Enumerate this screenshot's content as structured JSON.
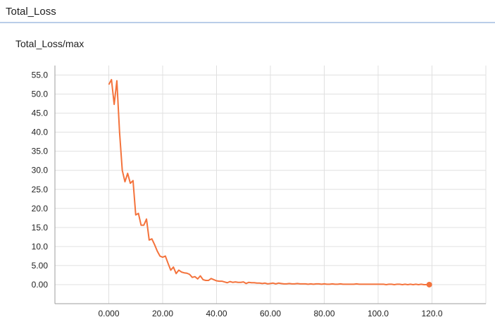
{
  "header": {
    "title": "Total_Loss"
  },
  "card": {
    "title": "Total_Loss/max"
  },
  "chart_data": {
    "type": "line",
    "title": "Total_Loss/max",
    "xlabel": "",
    "ylabel": "",
    "xlim": [
      -20,
      140
    ],
    "ylim": [
      -5,
      57.5
    ],
    "grid": true,
    "x_ticks": [
      0,
      20,
      40,
      60,
      80,
      100,
      120
    ],
    "x_tick_labels": [
      "0.000",
      "20.00",
      "40.00",
      "60.00",
      "80.00",
      "100.0",
      "120.0"
    ],
    "y_ticks": [
      0,
      5,
      10,
      15,
      20,
      25,
      30,
      35,
      40,
      45,
      50,
      55
    ],
    "y_tick_labels": [
      "0.00",
      "5.00",
      "10.0",
      "15.0",
      "20.0",
      "25.0",
      "30.0",
      "35.0",
      "40.0",
      "45.0",
      "50.0",
      "55.0"
    ],
    "color": "#f4733c",
    "series": [
      {
        "x": [
          0,
          1,
          2,
          3,
          4,
          5,
          6,
          7,
          8,
          9,
          10,
          11,
          12,
          13,
          14,
          15,
          16,
          17,
          18,
          19,
          20,
          21,
          22,
          23,
          24,
          25,
          26,
          27,
          28,
          29,
          30,
          31,
          32,
          33,
          34,
          35,
          36,
          37,
          38,
          39,
          40,
          41,
          42,
          43,
          44,
          45,
          46,
          47,
          48,
          49,
          50,
          51,
          52,
          53,
          54,
          55,
          56,
          57,
          58,
          59,
          60,
          61,
          62,
          63,
          64,
          65,
          66,
          67,
          68,
          69,
          70,
          71,
          72,
          73,
          74,
          75,
          76,
          77,
          78,
          79,
          80,
          81,
          82,
          83,
          84,
          85,
          86,
          87,
          88,
          89,
          90,
          91,
          92,
          93,
          94,
          95,
          96,
          97,
          98,
          99,
          100,
          101,
          102,
          103,
          104,
          105,
          106,
          107,
          108,
          109,
          110,
          111,
          112,
          113,
          114,
          115,
          116,
          117,
          118,
          119
        ],
        "values": [
          52.5,
          53.8,
          47.3,
          53.5,
          40.0,
          30.0,
          27.0,
          29.2,
          26.6,
          27.3,
          18.3,
          18.7,
          15.6,
          15.6,
          17.2,
          11.7,
          12.0,
          10.5,
          8.8,
          7.5,
          7.2,
          7.5,
          5.6,
          3.8,
          4.6,
          2.9,
          3.8,
          3.3,
          3.1,
          3.0,
          2.7,
          1.9,
          2.1,
          1.5,
          2.3,
          1.3,
          1.1,
          1.1,
          1.6,
          1.3,
          1.0,
          0.9,
          0.9,
          0.7,
          0.5,
          0.8,
          0.6,
          0.7,
          0.6,
          0.6,
          0.7,
          0.3,
          0.6,
          0.5,
          0.5,
          0.4,
          0.4,
          0.3,
          0.4,
          0.2,
          0.3,
          0.4,
          0.2,
          0.4,
          0.3,
          0.2,
          0.2,
          0.3,
          0.2,
          0.2,
          0.3,
          0.2,
          0.2,
          0.2,
          0.1,
          0.2,
          0.1,
          0.2,
          0.2,
          0.1,
          0.2,
          0.1,
          0.1,
          0.2,
          0.1,
          0.1,
          0.2,
          0.1,
          0.1,
          0.1,
          0.1,
          0.1,
          0.2,
          0.1,
          0.1,
          0.1,
          0.1,
          0.1,
          0.1,
          0.1,
          0.1,
          0.1,
          0.1,
          0.0,
          0.1,
          0.1,
          0.0,
          0.1,
          0.1,
          0.0,
          0.1,
          0.0,
          0.1,
          0.0,
          0.1,
          0.0,
          0.1,
          0.0,
          0.0,
          0.0
        ]
      }
    ]
  }
}
